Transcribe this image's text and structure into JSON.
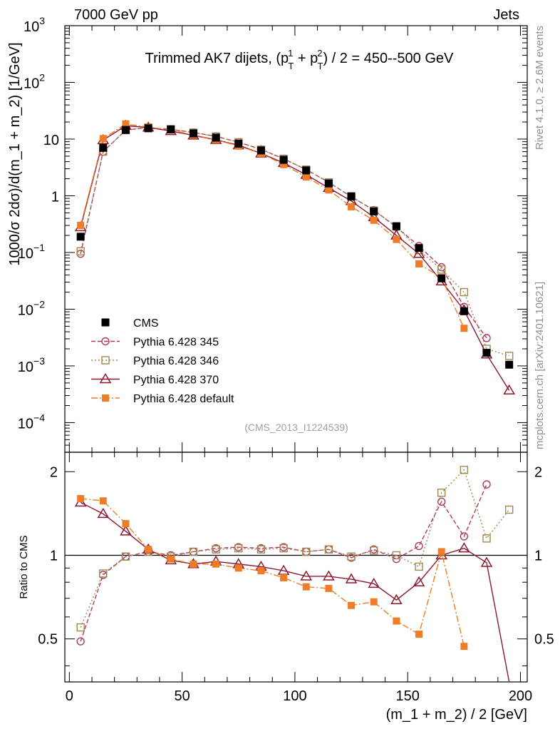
{
  "header": {
    "left": "7000 GeV pp",
    "right": "Jets"
  },
  "side_text": {
    "rivet": "Rivet 4.1.0, ≥ 2.6M events",
    "mcplots": "mcplots.cern.ch [arXiv:2401.10621]"
  },
  "chart_data": {
    "type": "line",
    "title_parts": {
      "prefix": "Trimmed AK7 dijets, (p",
      "sub1": "T",
      "sup1": "1",
      "mid": " + p",
      "sub2": "T",
      "sup2": "2",
      "suffix": ") / 2 = 450--500 GeV"
    },
    "analysis_label": "(CMS_2013_I1224539)",
    "xlabel": "(m_1 + m_2) / 2 [GeV]",
    "ylabel_main": "1000/σ  2dσ)/d(m_1 + m_2) [1/GeV]",
    "ylabel_ratio": "Ratio to CMS",
    "xlim": [
      -2,
      203
    ],
    "ylim_main": [
      3e-05,
      1000
    ],
    "ylim_ratio": [
      0.35,
      2.35
    ],
    "x_ticks": [
      "0",
      "50",
      "100",
      "150",
      "200"
    ],
    "y_ticks_main": [
      {
        "base": "10",
        "exp": "3"
      },
      {
        "base": "10",
        "exp": "2"
      },
      {
        "base": "10",
        "exp": ""
      },
      {
        "base": "1",
        "exp": ""
      },
      {
        "base": "10",
        "exp": "−1"
      },
      {
        "base": "10",
        "exp": "−2"
      },
      {
        "base": "10",
        "exp": "−3"
      },
      {
        "base": "10",
        "exp": "−4"
      }
    ],
    "y_ticks_ratio": [
      "2",
      "1",
      "0.5"
    ],
    "x": [
      5,
      15,
      25,
      35,
      45,
      55,
      65,
      75,
      85,
      95,
      105,
      115,
      125,
      135,
      145,
      155,
      165,
      175,
      185,
      195
    ],
    "data": {
      "name": "CMS",
      "values": [
        0.19,
        7.0,
        14.5,
        15.5,
        14.8,
        12.6,
        10.6,
        8.3,
        6.3,
        4.3,
        2.8,
        1.65,
        0.98,
        0.53,
        0.29,
        0.12,
        0.035,
        0.0092,
        0.0017,
        0.00105
      ]
    },
    "series": [
      {
        "name": "Pythia 6.428 345",
        "color": "#b03a5c",
        "values": [
          0.095,
          6.0,
          14.4,
          15.9,
          14.8,
          13.1,
          11.2,
          8.8,
          6.6,
          4.5,
          2.9,
          1.73,
          0.96,
          0.56,
          0.28,
          0.13,
          0.055,
          0.011,
          0.0031,
          null
        ],
        "ratio": [
          0.49,
          0.85,
          0.99,
          1.03,
          1.0,
          1.03,
          1.06,
          1.07,
          1.06,
          1.07,
          1.03,
          1.05,
          0.98,
          1.05,
          0.97,
          1.08,
          1.56,
          1.17,
          1.8,
          null
        ]
      },
      {
        "name": "Pythia 6.428 346",
        "color": "#a08850",
        "values": [
          0.105,
          6.0,
          14.4,
          16.0,
          15.0,
          13.0,
          11.1,
          8.8,
          6.5,
          4.5,
          2.9,
          1.72,
          0.97,
          0.55,
          0.29,
          0.11,
          0.05,
          0.02,
          0.002,
          0.0015
        ],
        "ratio": [
          0.55,
          0.86,
          0.99,
          1.03,
          0.99,
          1.03,
          1.05,
          1.06,
          1.05,
          1.06,
          1.03,
          1.05,
          0.99,
          1.04,
          1.0,
          0.91,
          1.68,
          2.03,
          1.15,
          1.46
        ]
      },
      {
        "name": "Pythia 6.428 370",
        "color": "#8b1a2e",
        "values": [
          0.28,
          9.6,
          17.2,
          16.0,
          13.9,
          11.6,
          9.7,
          7.8,
          5.6,
          3.8,
          2.35,
          1.38,
          0.81,
          0.42,
          0.2,
          0.095,
          0.031,
          0.0096,
          0.0016,
          0.00037
        ],
        "ratio": [
          1.55,
          1.41,
          1.22,
          1.05,
          0.96,
          0.93,
          0.95,
          0.93,
          0.91,
          0.88,
          0.84,
          0.84,
          0.82,
          0.79,
          0.69,
          0.8,
          1.0,
          1.06,
          0.94,
          0.33
        ]
      },
      {
        "name": "Pythia 6.428 default",
        "color": "#f07c28",
        "values": [
          0.3,
          10.2,
          18.5,
          16.2,
          14.5,
          11.8,
          9.8,
          7.5,
          5.6,
          3.55,
          2.15,
          1.27,
          0.64,
          0.37,
          0.17,
          0.063,
          0.036,
          0.0046,
          null,
          null
        ],
        "ratio": [
          1.6,
          1.57,
          1.3,
          1.05,
          0.97,
          0.93,
          0.93,
          0.9,
          0.88,
          0.83,
          0.77,
          0.76,
          0.66,
          0.68,
          0.58,
          0.52,
          1.03,
          0.47,
          null,
          null
        ]
      }
    ]
  }
}
